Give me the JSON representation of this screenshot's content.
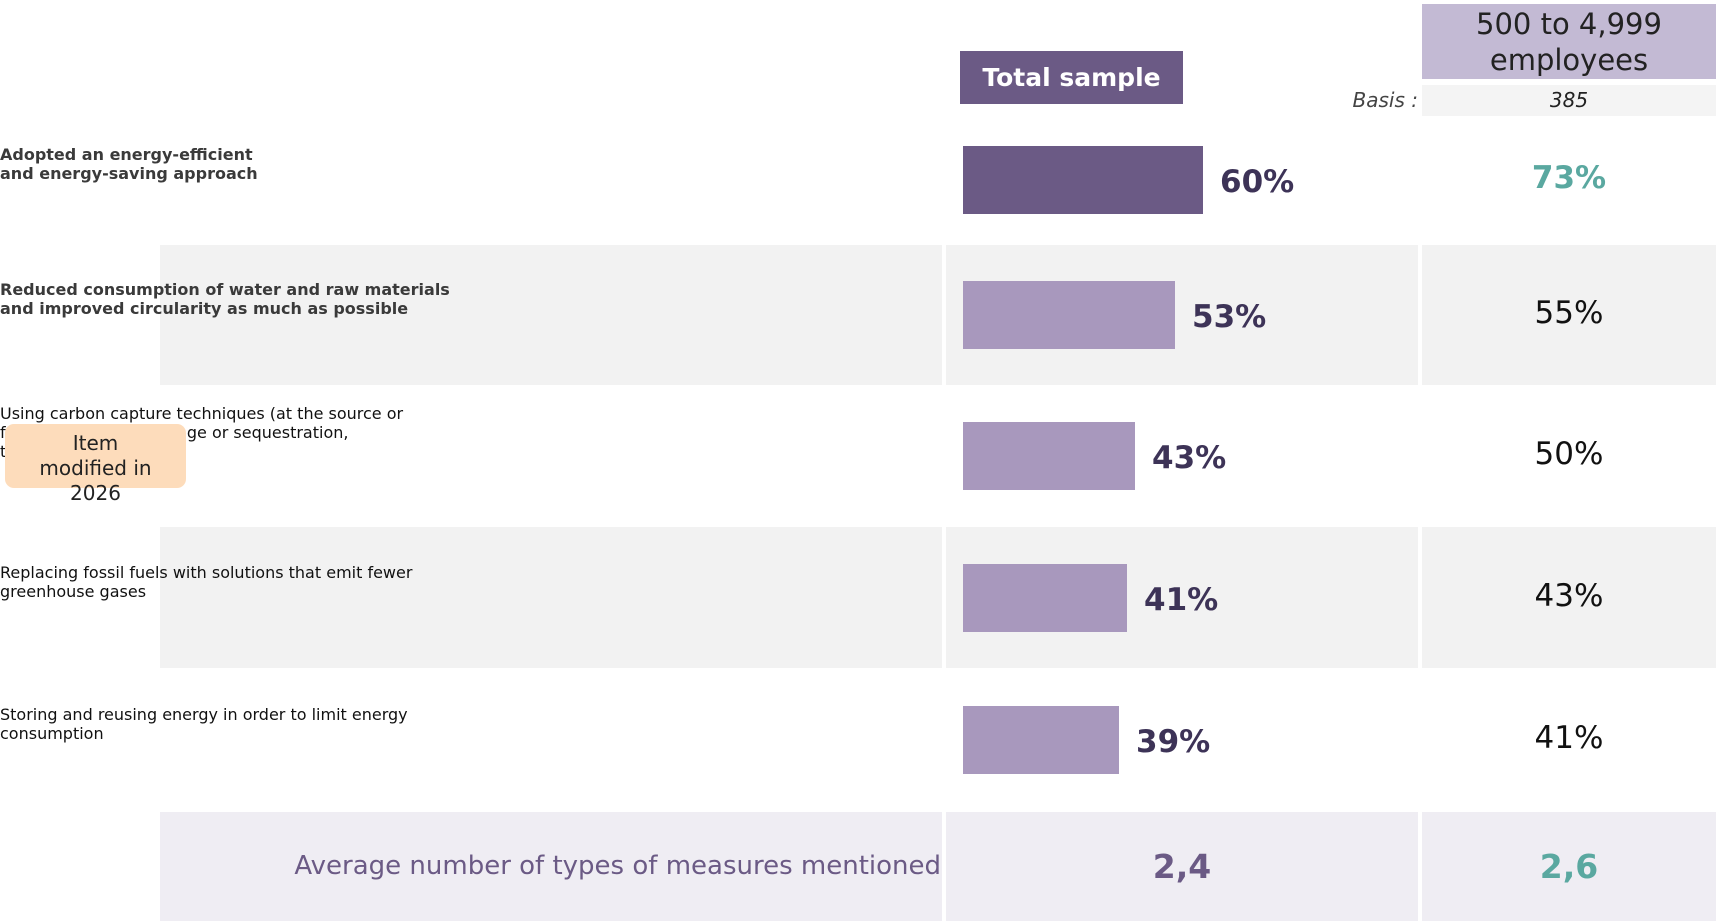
{
  "chart_data": {
    "type": "bar",
    "categories": [
      [
        "Adopted an energy-efficient",
        "and energy-saving approach"
      ],
      [
        "Reduced consumption of water and raw materials",
        "and improved circularity as much as possible"
      ],
      [
        "Using carbon capture techniques (at the source or",
        "from the air), and storage or sequestration,",
        "to reduce emissions"
      ],
      [
        "Replacing fossil fuels with solutions that emit fewer",
        "greenhouse gases"
      ],
      [
        "Storing and reusing energy in order to limit energy",
        "consumption"
      ]
    ],
    "category_bold": [
      true,
      true,
      false,
      false,
      false
    ],
    "series": [
      {
        "name": "Total sample",
        "colors": [
          "#6b5a85",
          "#a898bd",
          "#a898bd",
          "#a898bd",
          "#a898bd"
        ],
        "values": [
          60,
          53,
          43,
          41,
          39
        ],
        "value_labels": [
          "60%",
          "53%",
          "43%",
          "41%",
          "39%"
        ]
      }
    ],
    "xlim": [
      0,
      100
    ],
    "comparison": {
      "name": "500 to 4,999 employees",
      "basis_label": "Basis :",
      "basis": 385,
      "values": [
        73,
        55,
        50,
        43,
        41
      ],
      "value_labels": [
        "73%",
        "55%",
        "50%",
        "43%",
        "41%"
      ],
      "colors": [
        "#5aa8a0",
        "#111111",
        "#111111",
        "#111111",
        "#111111"
      ],
      "bold": [
        true,
        false,
        false,
        false,
        false
      ]
    },
    "average": {
      "label": "Average number of types of measures mentioned",
      "values": [
        2.4,
        2.6
      ],
      "value_labels": [
        "2,4",
        "2,6"
      ],
      "colors": [
        "#6b5a85",
        "#5aa8a0"
      ]
    },
    "note": {
      "text": "Item modified in 2026",
      "row": 2,
      "asterisk": "*"
    }
  }
}
